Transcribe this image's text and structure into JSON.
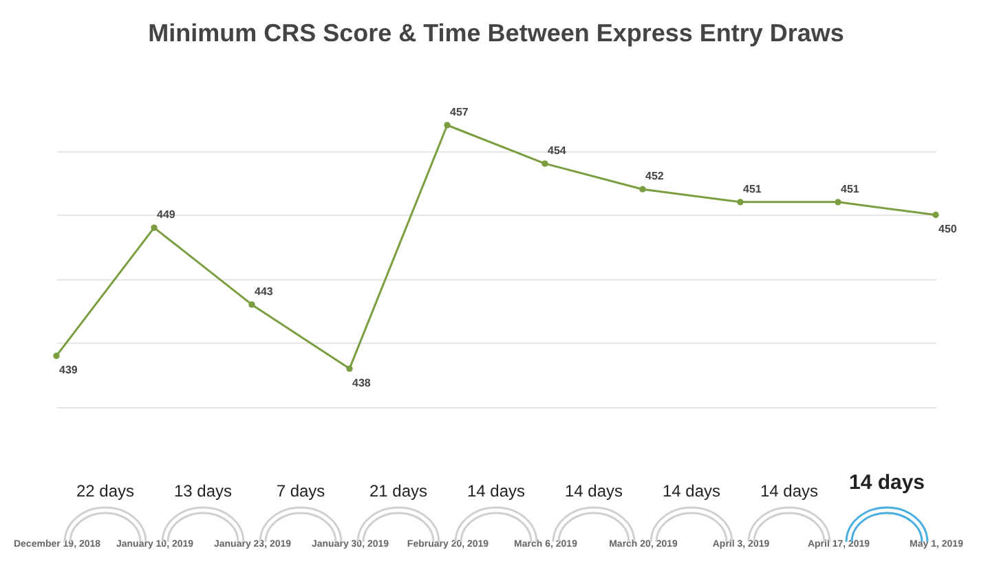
{
  "chart_data": {
    "type": "line",
    "title": "Minimum CRS Score & Time Between Express Entry Draws",
    "categories": [
      "December 19, 2018",
      "January 10, 2019",
      "January 23, 2019",
      "January 30, 2019",
      "February 20, 2019",
      "March 6, 2019",
      "March 20, 2019",
      "April 3, 2019",
      "April 17, 2019",
      "May 1, 2019"
    ],
    "series": [
      {
        "color": "#7a9e3f",
        "values": [
          439,
          449,
          443,
          438,
          457,
          454,
          452,
          451,
          451,
          450
        ]
      }
    ],
    "yticks": [
      {
        "value": 435,
        "label": null
      },
      {
        "value": 440,
        "label": null
      },
      {
        "value": 445,
        "label": null
      },
      {
        "value": 450,
        "label": null
      },
      {
        "value": 455,
        "label": null
      }
    ],
    "grid": "y",
    "marker": "circle",
    "data_labels": true,
    "annotations": [
      "22 days",
      "13 days",
      "7 days",
      "21 days",
      "14 days",
      "14 days",
      "14 days",
      "14 days",
      "14 days"
    ]
  }
}
